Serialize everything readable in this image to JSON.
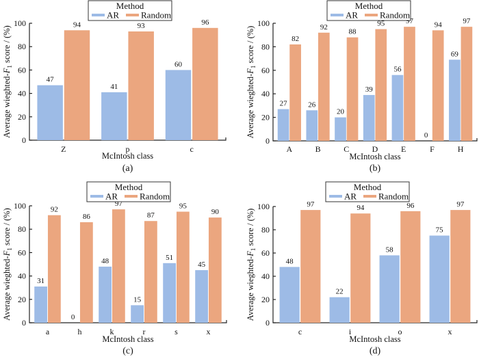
{
  "colors": {
    "AR": "#9dbbe6",
    "Random": "#eba67f"
  },
  "chart_data": [
    {
      "type": "bar",
      "panel": "(a)",
      "title": "",
      "legend": {
        "title": "Method",
        "entries": [
          "AR",
          "Random"
        ],
        "placement": "top-center"
      },
      "xlabel": "McIntosh class",
      "ylabel_prefix": "Average wieghted-",
      "ylabel_var": "F",
      "ylabel_sub": "1",
      "ylabel_suffix": " score / (%)",
      "ylim": [
        0,
        100
      ],
      "yticks": [
        0,
        20,
        40,
        60,
        80,
        100
      ],
      "categories": [
        "Z",
        "p",
        "c"
      ],
      "series": [
        {
          "name": "AR",
          "values": [
            47,
            41,
            60
          ]
        },
        {
          "name": "Random",
          "values": [
            94,
            93,
            96
          ]
        }
      ]
    },
    {
      "type": "bar",
      "panel": "(b)",
      "title": "",
      "legend": {
        "title": "Method",
        "entries": [
          "AR",
          "Random"
        ],
        "placement": "top-center"
      },
      "xlabel": "McIntosh class",
      "ylabel_prefix": "Average wieghted-",
      "ylabel_var": "F",
      "ylabel_sub": "1",
      "ylabel_suffix": " score / (%)",
      "ylim": [
        0,
        100
      ],
      "yticks": [
        0,
        20,
        40,
        60,
        80,
        100
      ],
      "categories": [
        "A",
        "B",
        "C",
        "D",
        "E",
        "F",
        "H"
      ],
      "series": [
        {
          "name": "AR",
          "values": [
            27,
            26,
            20,
            39,
            56,
            0,
            69
          ]
        },
        {
          "name": "Random",
          "values": [
            82,
            92,
            88,
            95,
            97,
            94,
            97
          ]
        }
      ]
    },
    {
      "type": "bar",
      "panel": "(c)",
      "title": "",
      "legend": {
        "title": "Method",
        "entries": [
          "AR",
          "Random"
        ],
        "placement": "top-center"
      },
      "xlabel": "McIntosh class",
      "ylabel_prefix": "Average wieghted-",
      "ylabel_var": "F",
      "ylabel_sub": "1",
      "ylabel_suffix": " score / (%)",
      "ylim": [
        0,
        100
      ],
      "yticks": [
        0,
        20,
        40,
        60,
        80,
        100
      ],
      "categories": [
        "a",
        "h",
        "k",
        "r",
        "s",
        "x"
      ],
      "series": [
        {
          "name": "AR",
          "values": [
            31,
            0,
            48,
            15,
            51,
            45
          ]
        },
        {
          "name": "Random",
          "values": [
            92,
            86,
            97,
            87,
            95,
            90
          ]
        }
      ]
    },
    {
      "type": "bar",
      "panel": "(d)",
      "title": "",
      "legend": {
        "title": "Method",
        "entries": [
          "AR",
          "Random"
        ],
        "placement": "top-center"
      },
      "xlabel": "McIntosh class",
      "ylabel_prefix": "Average wieghted-",
      "ylabel_var": "F",
      "ylabel_sub": "1",
      "ylabel_suffix": " score / (%)",
      "ylim": [
        0,
        100
      ],
      "yticks": [
        0,
        20,
        40,
        60,
        80,
        100
      ],
      "categories": [
        "c",
        "i",
        "o",
        "x"
      ],
      "series": [
        {
          "name": "AR",
          "values": [
            48,
            22,
            58,
            75
          ]
        },
        {
          "name": "Random",
          "values": [
            97,
            94,
            96,
            97
          ]
        }
      ]
    }
  ]
}
